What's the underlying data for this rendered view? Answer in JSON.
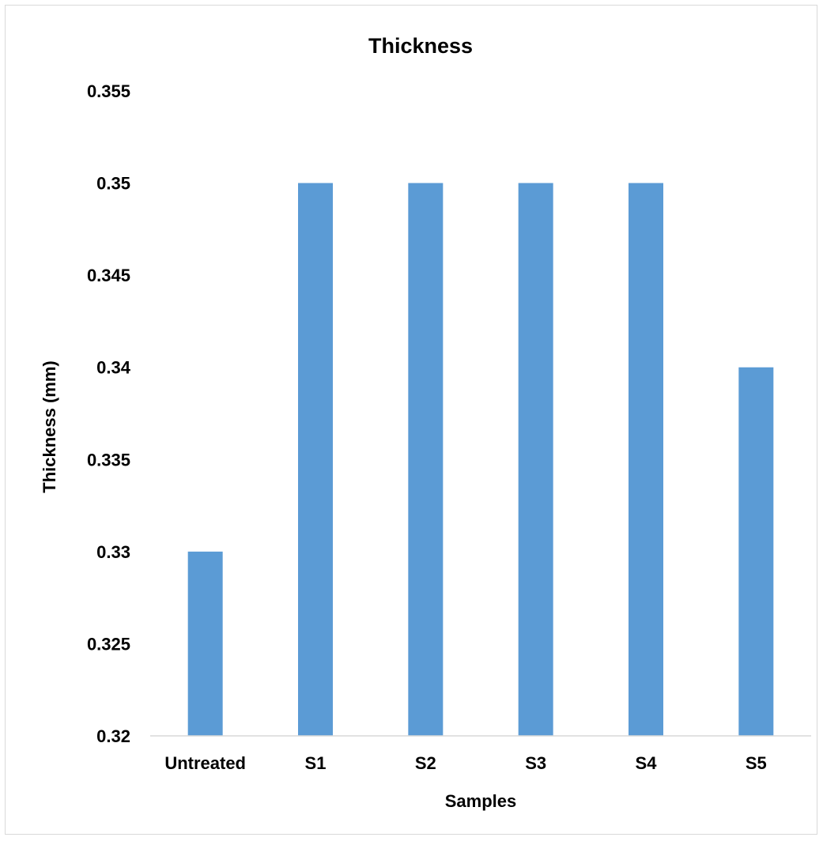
{
  "chart_data": {
    "type": "bar",
    "title": "Thickness",
    "xlabel": "Samples",
    "ylabel": "Thickness (mm)",
    "categories": [
      "Untreated",
      "S1",
      "S2",
      "S3",
      "S4",
      "S5"
    ],
    "values": [
      0.33,
      0.35,
      0.35,
      0.35,
      0.35,
      0.34
    ],
    "ylim": [
      0.32,
      0.355
    ],
    "yticks": [
      "0.32",
      "0.325",
      "0.33",
      "0.335",
      "0.34",
      "0.345",
      "0.35",
      "0.355"
    ],
    "grid": false,
    "legend": "none",
    "bar_color": "#5b9bd5"
  }
}
